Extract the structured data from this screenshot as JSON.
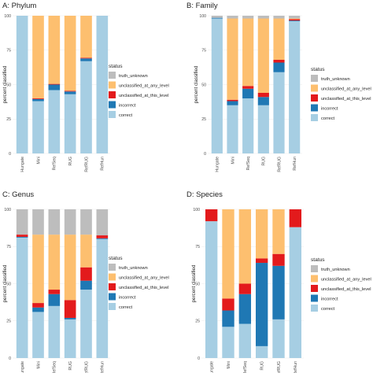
{
  "colors": {
    "correct": "#a6cee3",
    "incorrect": "#1f78b4",
    "unclassified_at_this_level": "#e31a1c",
    "unclassified_at_any_level": "#fdbf6f",
    "truth_unknown": "#bdbdbd"
  },
  "chart_data": [
    {
      "type": "bar",
      "stacked": true,
      "title": "A: Phylum",
      "ylabel": "percent classified",
      "ylim": [
        0,
        100
      ],
      "yticks": [
        0,
        25,
        50,
        75,
        100
      ],
      "categories": [
        "Hungate",
        "Mini",
        "RefSeq",
        "RUG",
        "RefRUG",
        "RefHun"
      ],
      "legend": {
        "title": "status",
        "entries": [
          "truth_unknown",
          "unclassified_at_any_level",
          "unclassified_at_this_level",
          "incorrect",
          "correct"
        ]
      },
      "series": [
        {
          "name": "correct",
          "values": [
            100,
            38,
            46,
            43,
            67,
            100
          ]
        },
        {
          "name": "incorrect",
          "values": [
            0,
            1.5,
            4,
            2,
            2,
            0
          ]
        },
        {
          "name": "unclassified_at_this_level",
          "values": [
            0,
            0.5,
            0.5,
            0.5,
            0.5,
            0
          ]
        },
        {
          "name": "unclassified_at_any_level",
          "values": [
            0,
            60,
            49.5,
            54.5,
            30.5,
            0
          ]
        },
        {
          "name": "truth_unknown",
          "values": [
            0,
            0,
            0,
            0,
            0,
            0
          ]
        }
      ]
    },
    {
      "type": "bar",
      "stacked": true,
      "title": "B: Family",
      "ylabel": "percent classified",
      "ylim": [
        0,
        100
      ],
      "yticks": [
        0,
        25,
        50,
        75,
        100
      ],
      "categories": [
        "Hungate",
        "Mini",
        "RefSeq",
        "RUG",
        "RefRUG",
        "RefHun"
      ],
      "legend": {
        "title": "status",
        "entries": [
          "truth_unknown",
          "unclassified_at_any_level",
          "unclassified_at_this_level",
          "incorrect",
          "correct"
        ]
      },
      "series": [
        {
          "name": "correct",
          "values": [
            98,
            35,
            40,
            35,
            59,
            96
          ]
        },
        {
          "name": "incorrect",
          "values": [
            0.5,
            3,
            7,
            6,
            7,
            0.5
          ]
        },
        {
          "name": "unclassified_at_this_level",
          "values": [
            0,
            1,
            2,
            3,
            2,
            1
          ]
        },
        {
          "name": "unclassified_at_any_level",
          "values": [
            0,
            59,
            49,
            54,
            30,
            0.5
          ]
        },
        {
          "name": "truth_unknown",
          "values": [
            1.5,
            2,
            2,
            2,
            2,
            2
          ]
        }
      ]
    },
    {
      "type": "bar",
      "stacked": true,
      "title": "C: Genus",
      "ylabel": "percent classified",
      "ylim": [
        0,
        100
      ],
      "yticks": [
        0,
        25,
        50,
        75,
        100
      ],
      "categories": [
        "Hungate",
        "Mini",
        "RefSeq",
        "RUG",
        "RefRUG",
        "RefHun"
      ],
      "legend": {
        "title": "status",
        "entries": [
          "truth_unknown",
          "unclassified_at_any_level",
          "unclassified_at_this_level",
          "incorrect",
          "correct"
        ]
      },
      "series": [
        {
          "name": "correct",
          "values": [
            81,
            31,
            35,
            26,
            46,
            80
          ]
        },
        {
          "name": "incorrect",
          "values": [
            0.5,
            3,
            8,
            1,
            6,
            0.5
          ]
        },
        {
          "name": "unclassified_at_this_level",
          "values": [
            1.5,
            3,
            3,
            12,
            9,
            2
          ]
        },
        {
          "name": "unclassified_at_any_level",
          "values": [
            0,
            46,
            37,
            44,
            22,
            0
          ]
        },
        {
          "name": "truth_unknown",
          "values": [
            17,
            17,
            17,
            17,
            17,
            17.5
          ]
        }
      ]
    },
    {
      "type": "bar",
      "stacked": true,
      "title": "D: Species",
      "ylabel": "percent classified",
      "ylim": [
        0,
        100
      ],
      "yticks": [
        0,
        25,
        50,
        75,
        100
      ],
      "categories": [
        "Hungate",
        "Mini",
        "RefSeq",
        "RUG",
        "RefRUG",
        "RefHun"
      ],
      "legend": {
        "title": "status",
        "entries": [
          "truth_unknown",
          "unclassified_at_any_level",
          "unclassified_at_this_level",
          "incorrect",
          "correct"
        ]
      },
      "series": [
        {
          "name": "correct",
          "values": [
            92,
            21,
            23,
            8,
            26,
            88
          ]
        },
        {
          "name": "incorrect",
          "values": [
            0,
            11,
            20,
            56,
            36,
            0
          ]
        },
        {
          "name": "unclassified_at_this_level",
          "values": [
            8,
            8,
            7,
            3,
            8,
            12
          ]
        },
        {
          "name": "unclassified_at_any_level",
          "values": [
            0,
            60,
            50,
            33,
            30,
            0
          ]
        },
        {
          "name": "truth_unknown",
          "values": [
            0,
            0,
            0,
            0,
            0,
            0
          ]
        }
      ]
    }
  ]
}
